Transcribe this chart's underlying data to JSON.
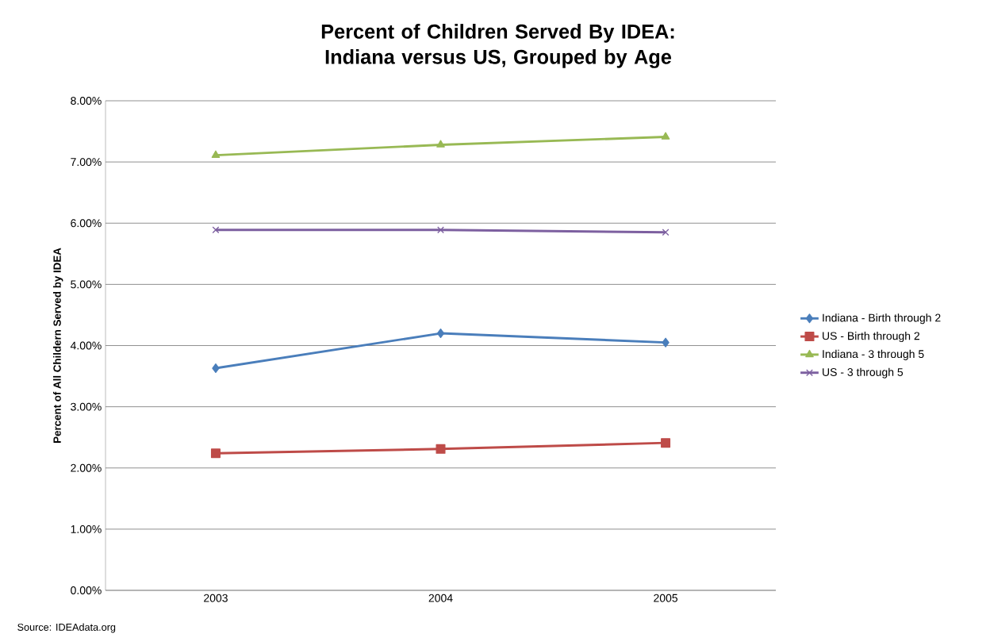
{
  "chart_data": {
    "type": "line",
    "title": "Percent of Children Served By IDEA: Indiana versus US, Grouped by Age",
    "ylabel": "Percent of All Childern Served by IDEA",
    "categories": [
      "2003",
      "2004",
      "2005"
    ],
    "series": [
      {
        "name": "Indiana - Birth through 2",
        "color": "#4a7ebb",
        "marker": "diamond",
        "values": [
          3.63,
          4.2,
          4.05
        ]
      },
      {
        "name": "US - Birth through 2",
        "color": "#be4b48",
        "marker": "square",
        "values": [
          2.24,
          2.31,
          2.41
        ]
      },
      {
        "name": "Indiana - 3 through 5",
        "color": "#98b954",
        "marker": "triangle",
        "values": [
          7.11,
          7.28,
          7.41
        ]
      },
      {
        "name": "US - 3 through 5",
        "color": "#7d60a0",
        "marker": "cross",
        "values": [
          5.89,
          5.89,
          5.85
        ]
      }
    ],
    "ylim": [
      0,
      8
    ],
    "yticks": [
      {
        "value": 0,
        "label": "0.00%"
      },
      {
        "value": 1,
        "label": "1.00%"
      },
      {
        "value": 2,
        "label": "2.00%"
      },
      {
        "value": 3,
        "label": "3.00%"
      },
      {
        "value": 4,
        "label": "4.00%"
      },
      {
        "value": 5,
        "label": "5.00%"
      },
      {
        "value": 6,
        "label": "6.00%"
      },
      {
        "value": 7,
        "label": "7.00%"
      },
      {
        "value": 8,
        "label": "8.00%"
      }
    ],
    "grid": "y",
    "legend": "right",
    "line_style": "solid",
    "annotations": [
      "Source: IDEAdata.org"
    ]
  }
}
